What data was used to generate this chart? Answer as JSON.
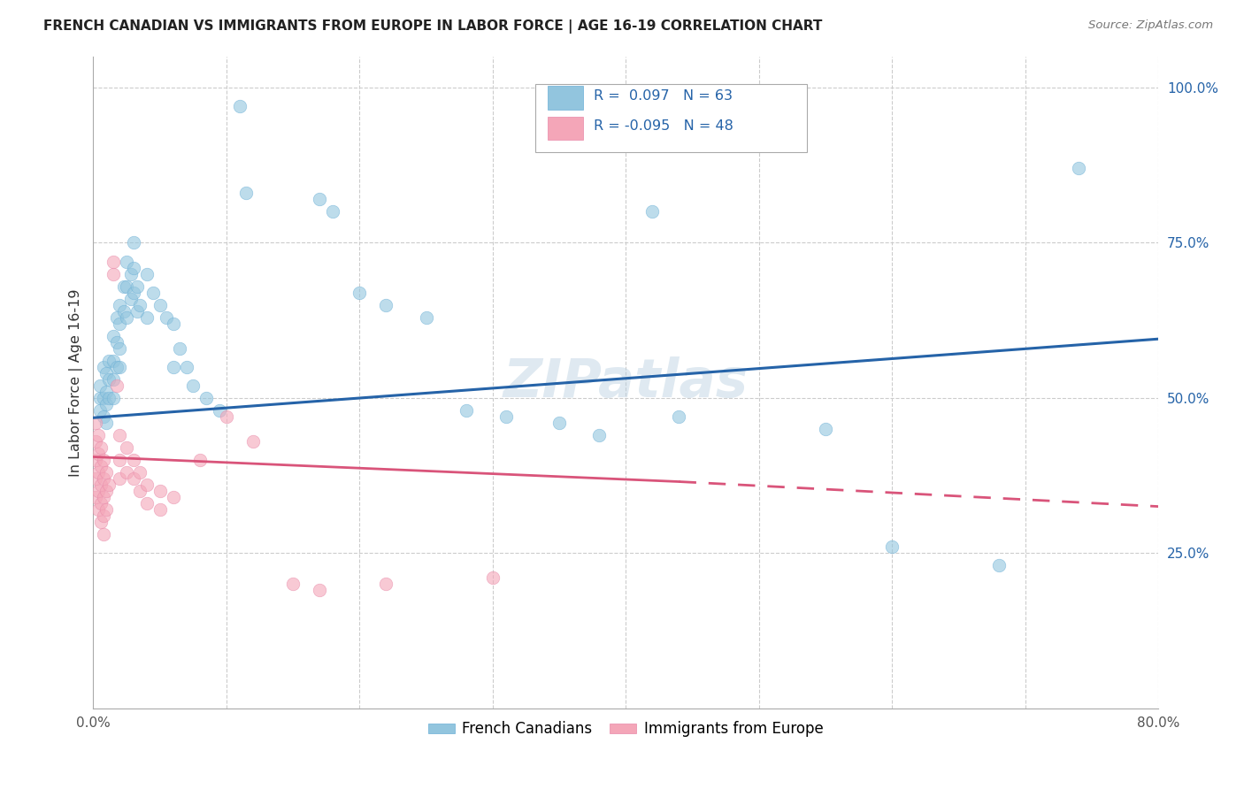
{
  "title": "FRENCH CANADIAN VS IMMIGRANTS FROM EUROPE IN LABOR FORCE | AGE 16-19 CORRELATION CHART",
  "source": "Source: ZipAtlas.com",
  "ylabel": "In Labor Force | Age 16-19",
  "xlim": [
    0.0,
    0.8
  ],
  "ylim": [
    0.0,
    1.05
  ],
  "ytick_vals": [
    0.0,
    0.25,
    0.5,
    0.75,
    1.0
  ],
  "ytick_labels": [
    "",
    "25.0%",
    "50.0%",
    "75.0%",
    "100.0%"
  ],
  "xtick_vals": [
    0.0,
    0.1,
    0.2,
    0.3,
    0.4,
    0.5,
    0.6,
    0.7,
    0.8
  ],
  "blue_color": "#92c5de",
  "pink_color": "#f4a6b8",
  "blue_line_color": "#2563a8",
  "pink_line_color": "#d9547a",
  "text_color_blue": "#2563a8",
  "watermark": "ZIPatlas",
  "french_canadians": [
    [
      0.005,
      0.52
    ],
    [
      0.005,
      0.5
    ],
    [
      0.005,
      0.48
    ],
    [
      0.008,
      0.55
    ],
    [
      0.008,
      0.5
    ],
    [
      0.008,
      0.47
    ],
    [
      0.01,
      0.54
    ],
    [
      0.01,
      0.51
    ],
    [
      0.01,
      0.49
    ],
    [
      0.01,
      0.46
    ],
    [
      0.012,
      0.56
    ],
    [
      0.012,
      0.53
    ],
    [
      0.012,
      0.5
    ],
    [
      0.015,
      0.6
    ],
    [
      0.015,
      0.56
    ],
    [
      0.015,
      0.53
    ],
    [
      0.015,
      0.5
    ],
    [
      0.018,
      0.63
    ],
    [
      0.018,
      0.59
    ],
    [
      0.018,
      0.55
    ],
    [
      0.02,
      0.65
    ],
    [
      0.02,
      0.62
    ],
    [
      0.02,
      0.58
    ],
    [
      0.02,
      0.55
    ],
    [
      0.023,
      0.68
    ],
    [
      0.023,
      0.64
    ],
    [
      0.025,
      0.72
    ],
    [
      0.025,
      0.68
    ],
    [
      0.025,
      0.63
    ],
    [
      0.028,
      0.7
    ],
    [
      0.028,
      0.66
    ],
    [
      0.03,
      0.75
    ],
    [
      0.03,
      0.71
    ],
    [
      0.03,
      0.67
    ],
    [
      0.033,
      0.68
    ],
    [
      0.033,
      0.64
    ],
    [
      0.035,
      0.65
    ],
    [
      0.04,
      0.7
    ],
    [
      0.04,
      0.63
    ],
    [
      0.045,
      0.67
    ],
    [
      0.05,
      0.65
    ],
    [
      0.055,
      0.63
    ],
    [
      0.06,
      0.62
    ],
    [
      0.06,
      0.55
    ],
    [
      0.065,
      0.58
    ],
    [
      0.07,
      0.55
    ],
    [
      0.075,
      0.52
    ],
    [
      0.085,
      0.5
    ],
    [
      0.095,
      0.48
    ],
    [
      0.11,
      0.97
    ],
    [
      0.115,
      0.83
    ],
    [
      0.17,
      0.82
    ],
    [
      0.18,
      0.8
    ],
    [
      0.2,
      0.67
    ],
    [
      0.22,
      0.65
    ],
    [
      0.25,
      0.63
    ],
    [
      0.28,
      0.48
    ],
    [
      0.31,
      0.47
    ],
    [
      0.35,
      0.46
    ],
    [
      0.38,
      0.44
    ],
    [
      0.42,
      0.8
    ],
    [
      0.44,
      0.47
    ],
    [
      0.55,
      0.45
    ],
    [
      0.6,
      0.26
    ],
    [
      0.68,
      0.23
    ],
    [
      0.74,
      0.87
    ]
  ],
  "immigrants_europe": [
    [
      0.002,
      0.46
    ],
    [
      0.002,
      0.43
    ],
    [
      0.002,
      0.4
    ],
    [
      0.002,
      0.37
    ],
    [
      0.002,
      0.34
    ],
    [
      0.004,
      0.44
    ],
    [
      0.004,
      0.41
    ],
    [
      0.004,
      0.38
    ],
    [
      0.004,
      0.35
    ],
    [
      0.004,
      0.32
    ],
    [
      0.006,
      0.42
    ],
    [
      0.006,
      0.39
    ],
    [
      0.006,
      0.36
    ],
    [
      0.006,
      0.33
    ],
    [
      0.006,
      0.3
    ],
    [
      0.008,
      0.4
    ],
    [
      0.008,
      0.37
    ],
    [
      0.008,
      0.34
    ],
    [
      0.008,
      0.31
    ],
    [
      0.008,
      0.28
    ],
    [
      0.01,
      0.38
    ],
    [
      0.01,
      0.35
    ],
    [
      0.01,
      0.32
    ],
    [
      0.012,
      0.36
    ],
    [
      0.015,
      0.7
    ],
    [
      0.015,
      0.72
    ],
    [
      0.018,
      0.52
    ],
    [
      0.02,
      0.44
    ],
    [
      0.02,
      0.4
    ],
    [
      0.02,
      0.37
    ],
    [
      0.025,
      0.42
    ],
    [
      0.025,
      0.38
    ],
    [
      0.03,
      0.4
    ],
    [
      0.03,
      0.37
    ],
    [
      0.035,
      0.38
    ],
    [
      0.035,
      0.35
    ],
    [
      0.04,
      0.36
    ],
    [
      0.04,
      0.33
    ],
    [
      0.05,
      0.35
    ],
    [
      0.05,
      0.32
    ],
    [
      0.06,
      0.34
    ],
    [
      0.08,
      0.4
    ],
    [
      0.1,
      0.47
    ],
    [
      0.12,
      0.43
    ],
    [
      0.15,
      0.2
    ],
    [
      0.17,
      0.19
    ],
    [
      0.22,
      0.2
    ],
    [
      0.3,
      0.21
    ]
  ],
  "blue_trend": [
    0.0,
    0.8,
    0.468,
    0.595
  ],
  "pink_trend_solid": [
    0.0,
    0.44,
    0.405,
    0.365
  ],
  "pink_trend_dashed": [
    0.44,
    0.8,
    0.365,
    0.325
  ]
}
